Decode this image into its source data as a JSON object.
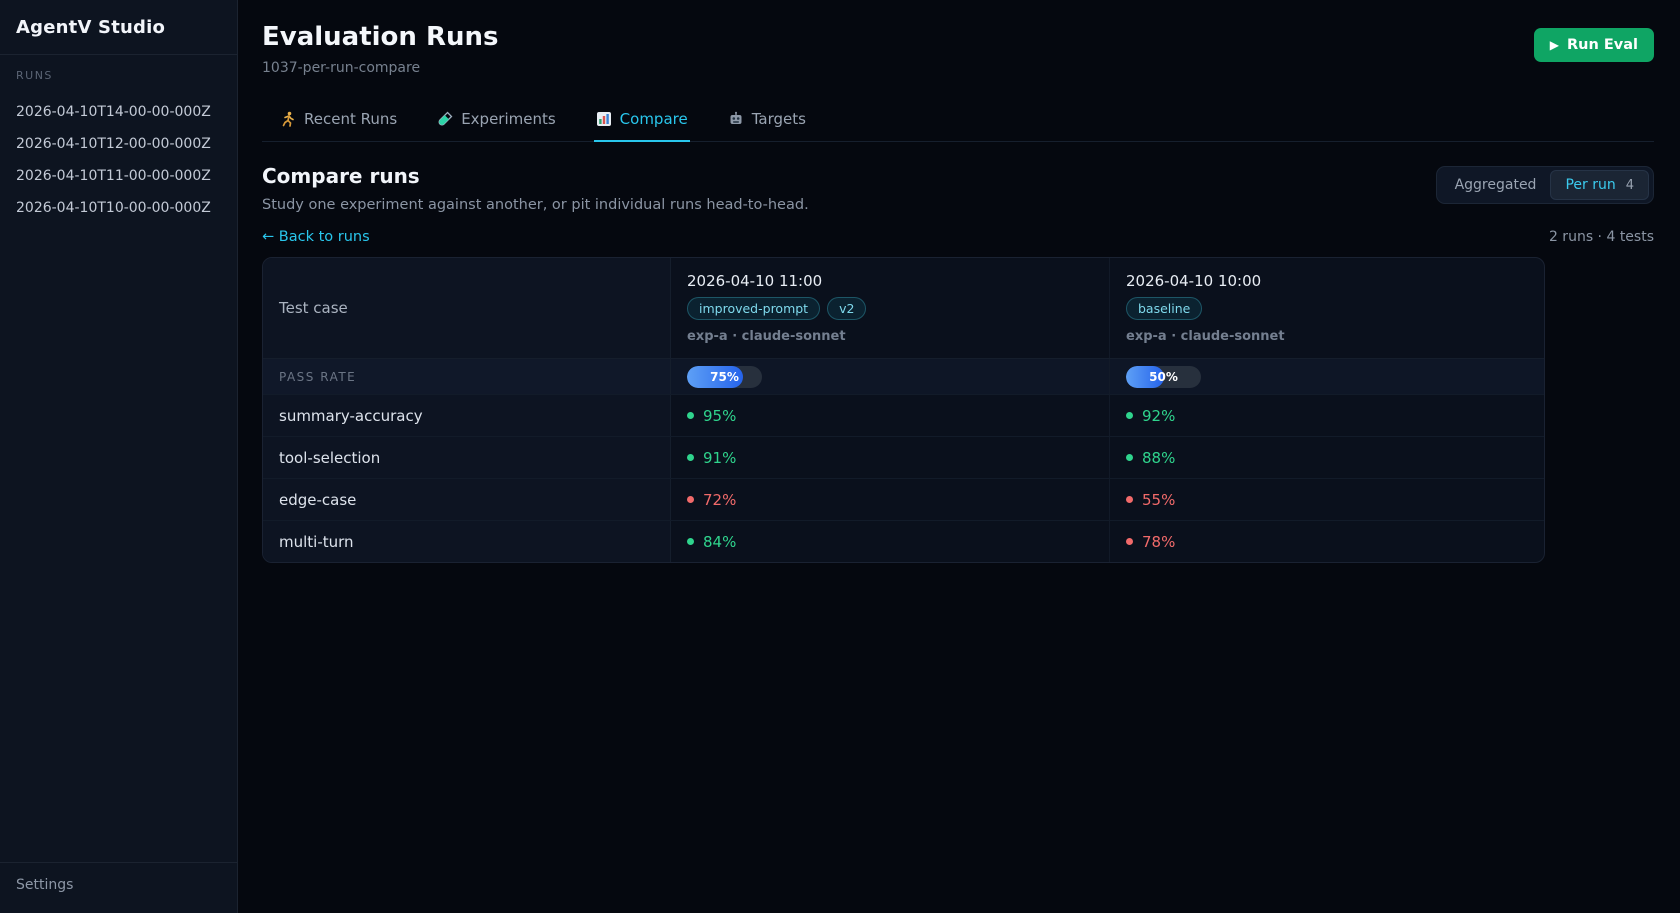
{
  "sidebar": {
    "app_title": "AgentV Studio",
    "section_label": "RUNS",
    "runs": [
      "2026-04-10T14-00-00-000Z",
      "2026-04-10T12-00-00-000Z",
      "2026-04-10T11-00-00-000Z",
      "2026-04-10T10-00-00-000Z"
    ],
    "settings_label": "Settings"
  },
  "header": {
    "title": "Evaluation Runs",
    "subtitle": "1037-per-run-compare",
    "run_eval_icon": "▶",
    "run_eval_label": "Run Eval"
  },
  "tabs": [
    {
      "label": "Recent Runs",
      "icon": "runner-icon",
      "active": false
    },
    {
      "label": "Experiments",
      "icon": "test-tube-icon",
      "active": false
    },
    {
      "label": "Compare",
      "icon": "bar-chart-icon",
      "active": true
    },
    {
      "label": "Targets",
      "icon": "robot-icon",
      "active": false
    }
  ],
  "compare": {
    "heading": "Compare runs",
    "description": "Study one experiment against another, or pit individual runs head-to-head.",
    "toggle": {
      "options": [
        {
          "label": "Aggregated",
          "active": false
        },
        {
          "label": "Per run",
          "badge": "4",
          "active": true
        }
      ]
    },
    "back_link": "← Back to runs",
    "summary": "2 runs · 4 tests"
  },
  "table": {
    "test_case_header": "Test case",
    "pass_rate_label": "PASS RATE",
    "runs": [
      {
        "datetime": "2026-04-10 11:00",
        "badges": [
          "improved-prompt",
          "v2"
        ],
        "meta": "exp-a · claude-sonnet",
        "pass_rate": 75,
        "pass_rate_text": "75%"
      },
      {
        "datetime": "2026-04-10 10:00",
        "badges": [
          "baseline"
        ],
        "meta": "exp-a · claude-sonnet",
        "pass_rate": 50,
        "pass_rate_text": "50%"
      }
    ],
    "rows": [
      {
        "test": "summary-accuracy",
        "values": [
          {
            "pct": "95%",
            "status": "pass"
          },
          {
            "pct": "92%",
            "status": "pass"
          }
        ]
      },
      {
        "test": "tool-selection",
        "values": [
          {
            "pct": "91%",
            "status": "pass"
          },
          {
            "pct": "88%",
            "status": "pass"
          }
        ]
      },
      {
        "test": "edge-case",
        "values": [
          {
            "pct": "72%",
            "status": "fail"
          },
          {
            "pct": "55%",
            "status": "fail"
          }
        ]
      },
      {
        "test": "multi-turn",
        "values": [
          {
            "pct": "84%",
            "status": "pass"
          },
          {
            "pct": "78%",
            "status": "fail"
          }
        ]
      }
    ]
  },
  "colors": {
    "accent_cyan": "#29c6ec",
    "pass_green": "#2fd48d",
    "fail_red": "#f16a6a",
    "bar_blue": "#2563eb",
    "button_green": "#0fa564"
  }
}
